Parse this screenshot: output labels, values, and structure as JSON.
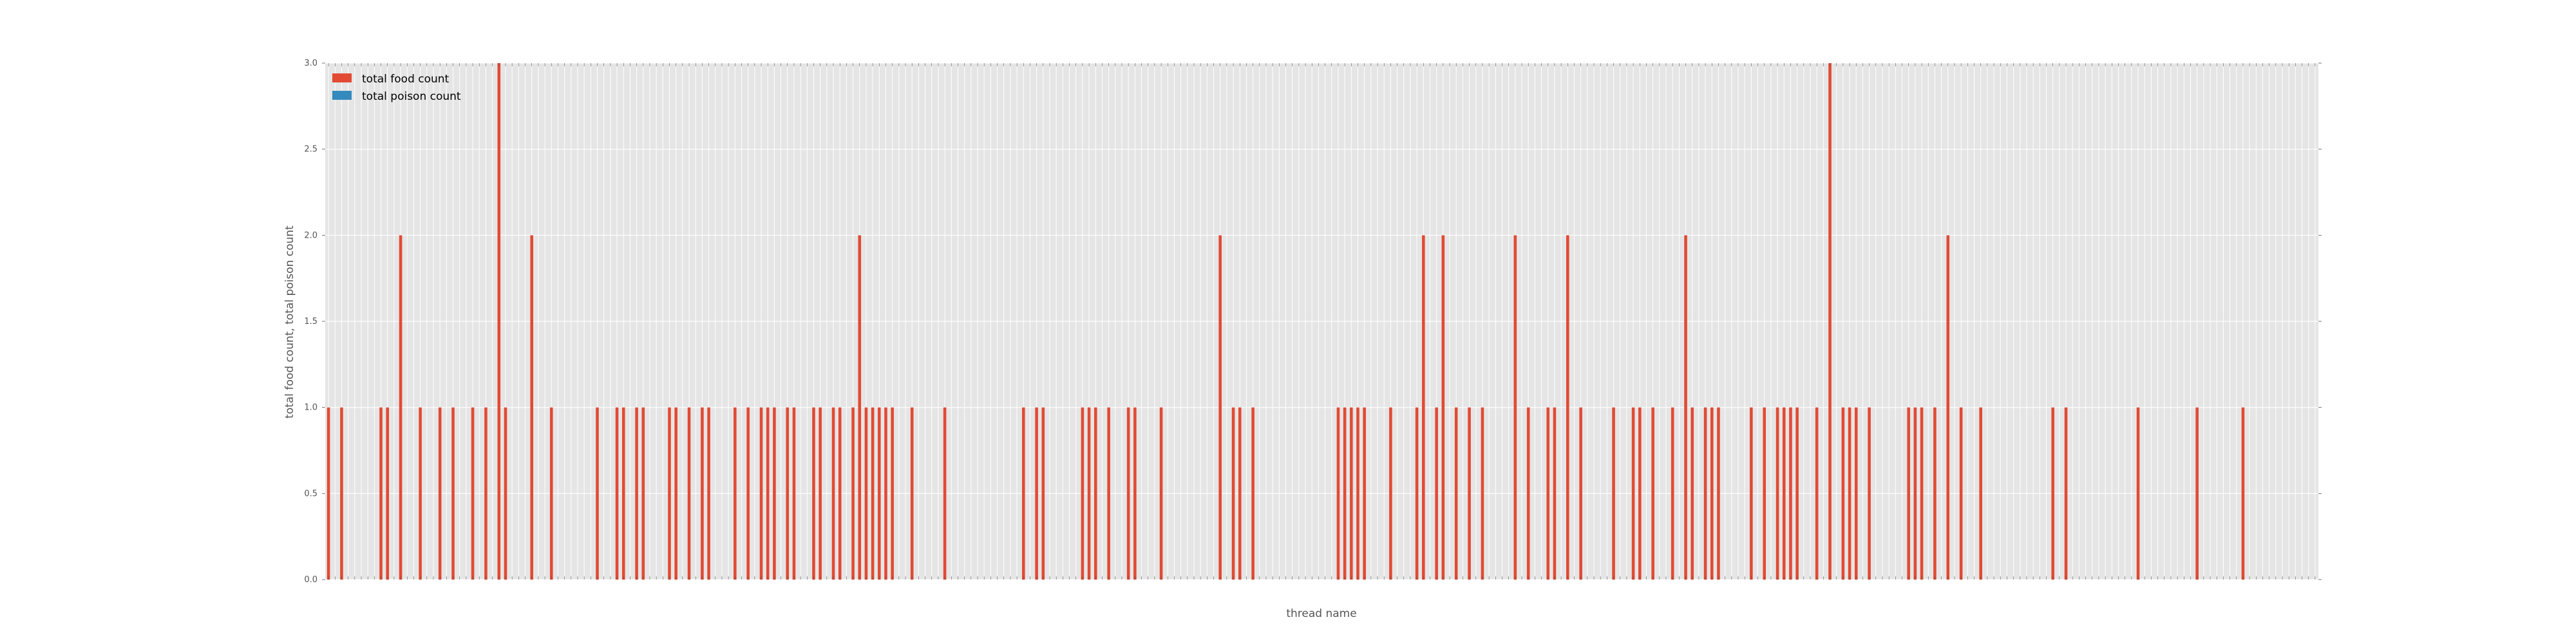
{
  "chart_data": {
    "type": "bar",
    "xlabel": "thread name",
    "ylabel": "total food count, total poison count",
    "ylim": [
      0,
      3.0
    ],
    "yticks": [
      "0.0",
      "0.5",
      "1.0",
      "1.5",
      "2.0",
      "2.5",
      "3.0"
    ],
    "grid": true,
    "legend_position": "top-left",
    "categories_count": 304,
    "series": [
      {
        "name": "total food count",
        "color": "#e24a33",
        "values": [
          1,
          0,
          1,
          0,
          0,
          0,
          0,
          0,
          1,
          1,
          0,
          2,
          0,
          0,
          1,
          0,
          0,
          1,
          0,
          1,
          0,
          0,
          1,
          0,
          1,
          0,
          3,
          1,
          0,
          0,
          0,
          2,
          0,
          0,
          1,
          0,
          0,
          0,
          0,
          0,
          0,
          1,
          0,
          0,
          1,
          1,
          0,
          1,
          1,
          0,
          0,
          0,
          1,
          1,
          0,
          1,
          0,
          1,
          1,
          0,
          0,
          0,
          1,
          0,
          1,
          0,
          1,
          1,
          1,
          0,
          1,
          1,
          0,
          0,
          1,
          1,
          0,
          1,
          1,
          0,
          1,
          2,
          1,
          1,
          1,
          1,
          1,
          0,
          0,
          1,
          0,
          0,
          0,
          0,
          1,
          0,
          0,
          0,
          0,
          0,
          0,
          0,
          0,
          0,
          0,
          0,
          1,
          0,
          1,
          1,
          0,
          0,
          0,
          0,
          0,
          1,
          1,
          1,
          0,
          1,
          0,
          0,
          1,
          1,
          0,
          0,
          0,
          1,
          0,
          0,
          0,
          0,
          0,
          0,
          0,
          0,
          2,
          0,
          1,
          1,
          0,
          1,
          0,
          0,
          0,
          0,
          0,
          0,
          0,
          0,
          0,
          0,
          0,
          0,
          1,
          1,
          1,
          1,
          1,
          0,
          0,
          0,
          1,
          0,
          0,
          0,
          1,
          2,
          0,
          1,
          2,
          0,
          1,
          0,
          1,
          0,
          1,
          0,
          0,
          0,
          0,
          2,
          0,
          1,
          0,
          0,
          1,
          1,
          0,
          2,
          0,
          1,
          0,
          0,
          0,
          0,
          1,
          0,
          0,
          1,
          1,
          0,
          1,
          0,
          0,
          1,
          0,
          2,
          1,
          0,
          1,
          1,
          1,
          0,
          0,
          0,
          0,
          1,
          0,
          1,
          0,
          1,
          1,
          1,
          1,
          0,
          0,
          1,
          0,
          3,
          0,
          1,
          1,
          1,
          0,
          1,
          0,
          0,
          0,
          0,
          0,
          1,
          1,
          1,
          0,
          1,
          0,
          2,
          0,
          1,
          0,
          0,
          1,
          0,
          0,
          0,
          0,
          0,
          0,
          0,
          0,
          0,
          0,
          1,
          0,
          1,
          0,
          0,
          0,
          0,
          0,
          0,
          0,
          0,
          0,
          0,
          1,
          0,
          0,
          0,
          0,
          0,
          0,
          0,
          0,
          1,
          0,
          0,
          0,
          0,
          0,
          0,
          1,
          0,
          0,
          0,
          0,
          0,
          0,
          0,
          0,
          0,
          0,
          0,
          0,
          0,
          0,
          0,
          0,
          0,
          0,
          0,
          0,
          0,
          0,
          0,
          0,
          0,
          0,
          0,
          0,
          0,
          0,
          0,
          0,
          0
        ]
      },
      {
        "name": "total poison count",
        "color": "#348abd",
        "values": []
      }
    ]
  }
}
